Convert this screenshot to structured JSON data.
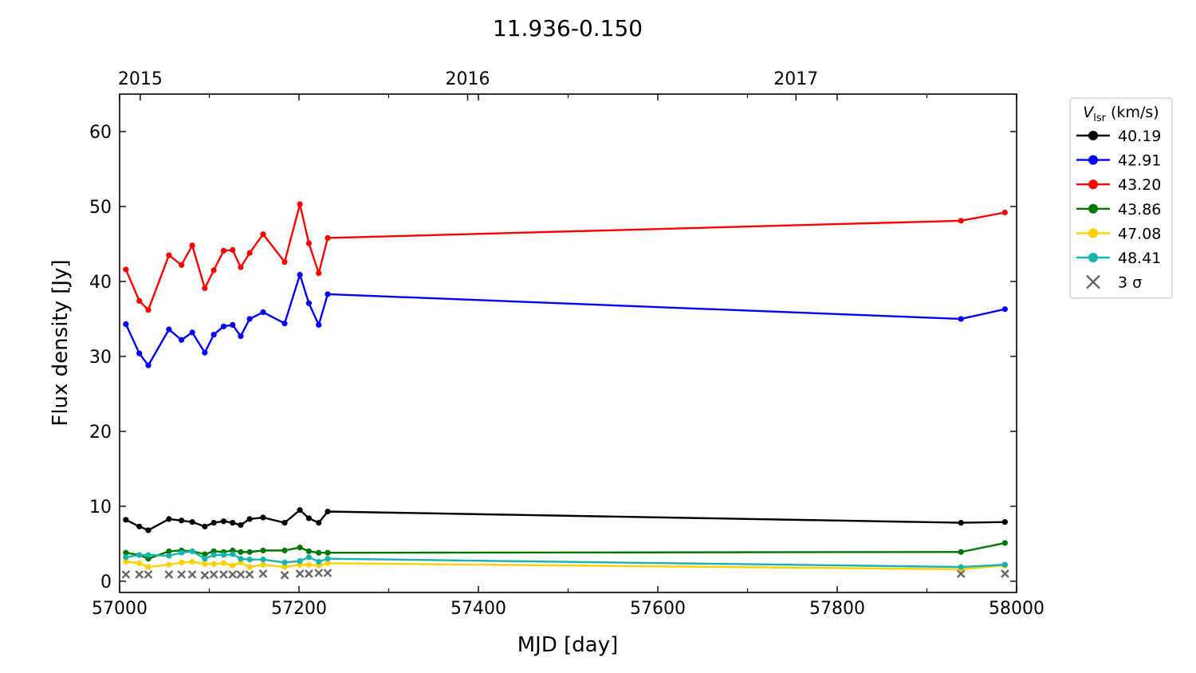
{
  "chart_data": {
    "type": "line",
    "title": "11.936-0.150",
    "xlabel": "MJD [day]",
    "ylabel": "Flux density [Jy]",
    "xlim": [
      57000,
      58000
    ],
    "ylim": [
      -1.5,
      65
    ],
    "x_ticks": [
      57000,
      57200,
      57400,
      57600,
      57800,
      58000
    ],
    "y_ticks": [
      0,
      10,
      20,
      30,
      40,
      50,
      60
    ],
    "top_axis": {
      "labels": [
        {
          "label": "2015",
          "mjd": 57023
        },
        {
          "label": "2016",
          "mjd": 57388
        },
        {
          "label": "2017",
          "mjd": 57754
        }
      ]
    },
    "legend": {
      "title_symbol": "V",
      "title_subscript": "lsr",
      "title_unit": "(km/s)",
      "placement": "outside-right-top",
      "sigma_label": "3 σ"
    },
    "x": [
      57007,
      57022,
      57032,
      57055,
      57069,
      57081,
      57095,
      57105,
      57116,
      57126,
      57135,
      57145,
      57160,
      57184,
      57201,
      57211,
      57222,
      57232,
      57938,
      57987
    ],
    "series": [
      {
        "name": "40.19",
        "color": "#000000",
        "values": [
          8.2,
          7.3,
          6.8,
          8.3,
          8.1,
          7.9,
          7.3,
          7.8,
          8.0,
          7.8,
          7.5,
          8.3,
          8.5,
          7.8,
          9.5,
          8.4,
          7.8,
          9.3,
          7.8,
          7.9
        ]
      },
      {
        "name": "42.91",
        "color": "#0000ff",
        "values": [
          34.3,
          30.4,
          28.8,
          33.6,
          32.2,
          33.2,
          30.5,
          32.9,
          34.0,
          34.2,
          32.7,
          35.0,
          35.9,
          34.4,
          40.9,
          37.1,
          34.2,
          38.3,
          35.0,
          36.3
        ]
      },
      {
        "name": "43.20",
        "color": "#ff0000",
        "values": [
          41.6,
          37.4,
          36.2,
          43.5,
          42.2,
          44.8,
          39.1,
          41.5,
          44.1,
          44.2,
          41.9,
          43.8,
          46.3,
          42.6,
          50.3,
          45.1,
          41.1,
          45.8,
          48.1,
          49.2
        ]
      },
      {
        "name": "43.86",
        "color": "#007700",
        "values": [
          3.8,
          3.5,
          3.0,
          4.0,
          4.1,
          4.0,
          3.6,
          4.0,
          3.9,
          4.1,
          3.9,
          3.9,
          4.1,
          4.1,
          4.5,
          4.0,
          3.8,
          3.8,
          3.9,
          5.1
        ]
      },
      {
        "name": "47.08",
        "color": "#ffd000",
        "values": [
          2.6,
          2.4,
          1.9,
          2.2,
          2.5,
          2.6,
          2.3,
          2.3,
          2.4,
          2.1,
          2.5,
          1.9,
          2.2,
          1.9,
          2.2,
          2.2,
          2.1,
          2.4,
          1.6,
          2.1
        ]
      },
      {
        "name": "48.41",
        "color": "#17b3ae",
        "values": [
          3.2,
          3.5,
          3.5,
          3.4,
          3.8,
          4.0,
          3.0,
          3.5,
          3.5,
          3.6,
          3.0,
          2.9,
          2.9,
          2.5,
          2.7,
          3.2,
          2.6,
          3.0,
          1.9,
          2.2
        ]
      }
    ],
    "sigma3": {
      "name": "3 σ",
      "color": "#666666",
      "x": [
        57007,
        57022,
        57032,
        57055,
        57069,
        57081,
        57095,
        57105,
        57116,
        57126,
        57135,
        57145,
        57160,
        57184,
        57201,
        57211,
        57222,
        57232,
        57938,
        57987
      ],
      "values": [
        0.9,
        0.9,
        0.9,
        0.9,
        0.9,
        0.9,
        0.8,
        0.9,
        0.9,
        0.9,
        0.9,
        0.9,
        1.0,
        0.8,
        1.0,
        1.0,
        1.1,
        1.1,
        1.0,
        1.0
      ]
    }
  }
}
